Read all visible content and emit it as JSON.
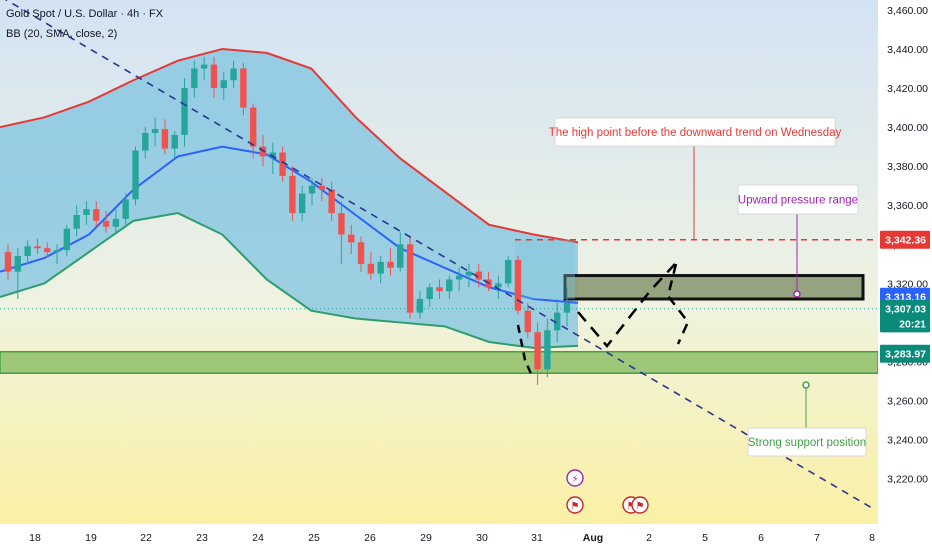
{
  "legend": {
    "symbol": "Gold Spot / U.S. Dollar · 4h · FX",
    "indicator": "BB (20, SMA, close, 2)"
  },
  "colors": {
    "bull": "#26a69a",
    "bear": "#ef5350",
    "upper_band": "#e53935",
    "lower_band": "#2e9d6e",
    "basis": "#2962ff",
    "band_fill": "#7fc3e0",
    "trendline": "#283593",
    "resistance_zone": "#8c9a76",
    "support_zone": "#8fbf6a",
    "red_level": "#e53935",
    "magenta": "#9c27b0",
    "green": "#43a047"
  },
  "chart_data": {
    "type": "candlestick",
    "symbol": "XAUUSD",
    "timeframe": "4h",
    "ylim": [
      3205,
      3462
    ],
    "y_ticks": [
      3220,
      3240,
      3260,
      3280,
      3300,
      3320,
      3340,
      3360,
      3380,
      3400,
      3420,
      3440,
      3460
    ],
    "x_ticks": [
      "18",
      "19",
      "22",
      "23",
      "24",
      "25",
      "26",
      "29",
      "30",
      "31",
      "Aug",
      "2",
      "5",
      "6",
      "7",
      "8"
    ],
    "candles_ohlc": [
      [
        3336,
        3340,
        3322,
        3326
      ],
      [
        3326,
        3338,
        3312,
        3334
      ],
      [
        3334,
        3342,
        3330,
        3339
      ],
      [
        3339,
        3343,
        3335,
        3338
      ],
      [
        3338,
        3341,
        3333,
        3336
      ],
      [
        3336,
        3340,
        3330,
        3337
      ],
      [
        3337,
        3350,
        3334,
        3348
      ],
      [
        3348,
        3360,
        3344,
        3355
      ],
      [
        3355,
        3362,
        3350,
        3358
      ],
      [
        3358,
        3362,
        3349,
        3352
      ],
      [
        3352,
        3357,
        3346,
        3349
      ],
      [
        3349,
        3358,
        3345,
        3353
      ],
      [
        3353,
        3366,
        3350,
        3363
      ],
      [
        3363,
        3390,
        3360,
        3388
      ],
      [
        3388,
        3400,
        3384,
        3397
      ],
      [
        3397,
        3405,
        3390,
        3399
      ],
      [
        3399,
        3404,
        3386,
        3389
      ],
      [
        3389,
        3398,
        3384,
        3396
      ],
      [
        3396,
        3425,
        3390,
        3420
      ],
      [
        3420,
        3434,
        3415,
        3430
      ],
      [
        3430,
        3436,
        3424,
        3432
      ],
      [
        3432,
        3436,
        3415,
        3420
      ],
      [
        3420,
        3428,
        3414,
        3424
      ],
      [
        3424,
        3434,
        3420,
        3430
      ],
      [
        3430,
        3433,
        3406,
        3410
      ],
      [
        3410,
        3412,
        3384,
        3390
      ],
      [
        3390,
        3396,
        3380,
        3385
      ],
      [
        3385,
        3392,
        3376,
        3387
      ],
      [
        3387,
        3390,
        3372,
        3375
      ],
      [
        3375,
        3380,
        3352,
        3356
      ],
      [
        3356,
        3370,
        3352,
        3366
      ],
      [
        3366,
        3374,
        3360,
        3370
      ],
      [
        3370,
        3374,
        3362,
        3368
      ],
      [
        3368,
        3372,
        3352,
        3356
      ],
      [
        3356,
        3362,
        3330,
        3345
      ],
      [
        3345,
        3350,
        3335,
        3341
      ],
      [
        3341,
        3344,
        3326,
        3330
      ],
      [
        3330,
        3336,
        3322,
        3325
      ],
      [
        3325,
        3334,
        3320,
        3331
      ],
      [
        3331,
        3338,
        3324,
        3328
      ],
      [
        3328,
        3346,
        3326,
        3340
      ],
      [
        3340,
        3344,
        3302,
        3305
      ],
      [
        3305,
        3316,
        3302,
        3312
      ],
      [
        3312,
        3320,
        3308,
        3318
      ],
      [
        3318,
        3322,
        3312,
        3316
      ],
      [
        3316,
        3324,
        3312,
        3322
      ],
      [
        3322,
        3328,
        3316,
        3324
      ],
      [
        3324,
        3330,
        3318,
        3326
      ],
      [
        3326,
        3330,
        3318,
        3322
      ],
      [
        3322,
        3326,
        3316,
        3318
      ],
      [
        3318,
        3324,
        3312,
        3320
      ],
      [
        3320,
        3334,
        3318,
        3332
      ],
      [
        3332,
        3334,
        3304,
        3306
      ],
      [
        3306,
        3310,
        3292,
        3295
      ],
      [
        3295,
        3300,
        3268,
        3276
      ],
      [
        3276,
        3302,
        3272,
        3296
      ],
      [
        3296,
        3312,
        3290,
        3305
      ],
      [
        3305,
        3318,
        3298,
        3310
      ]
    ],
    "bollinger": {
      "upper": [
        3400,
        3405,
        3413,
        3424,
        3434,
        3440,
        3438,
        3430,
        3405,
        3384,
        3367,
        3350,
        3345,
        3341
      ],
      "basis": [
        3326,
        3333,
        3345,
        3368,
        3385,
        3390,
        3386,
        3372,
        3355,
        3338,
        3328,
        3318,
        3312,
        3310
      ],
      "lower": [
        3313,
        3320,
        3336,
        3352,
        3356,
        3345,
        3322,
        3306,
        3302,
        3300,
        3298,
        3290,
        3287,
        3288
      ]
    },
    "trendline": {
      "start": {
        "x": "17",
        "y": 3470
      },
      "end": {
        "x": "8",
        "y": 3205
      }
    },
    "zones": [
      {
        "name": "resistance",
        "low": 3312,
        "high": 3324
      },
      {
        "name": "support",
        "low": 3274,
        "high": 3285
      }
    ],
    "levels": [
      {
        "name": "red-dashed-high",
        "value": 3342.36
      },
      {
        "name": "current",
        "value": 3307.03
      }
    ],
    "annotations": [
      {
        "text": "The high point before the downward trend on Wednesday",
        "color": "red"
      },
      {
        "text": "Upward pressure range",
        "color": "magenta"
      },
      {
        "text": "Strong support position",
        "color": "green"
      }
    ],
    "price_labels": [
      {
        "text": "3,342.36",
        "value": 3342.36,
        "bg": "#e53935"
      },
      {
        "text": "3,313.16",
        "value": 3313.16,
        "bg": "#2962ff"
      },
      {
        "text": "3,307.03",
        "value": 3307.03,
        "bg": "#0a8a7a"
      },
      {
        "text": "20:21",
        "value": 3299.5,
        "bg": "#0a8a7a"
      },
      {
        "text": "3,283.97",
        "value": 3283.97,
        "bg": "#0a8a7a"
      }
    ]
  }
}
